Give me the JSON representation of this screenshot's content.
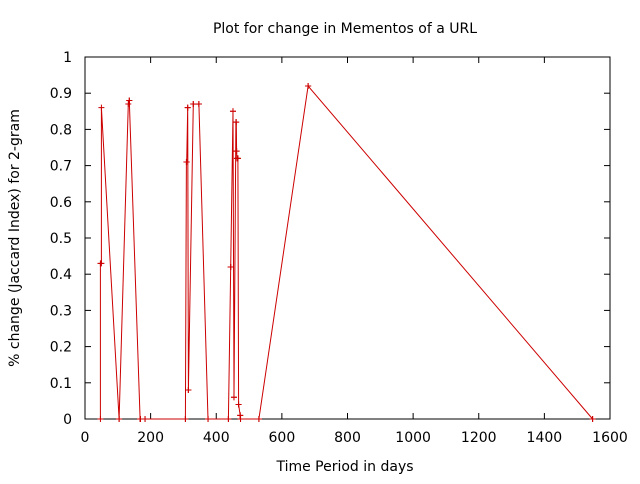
{
  "chart_data": {
    "type": "line",
    "title": "Plot for change in Mementos of a URL",
    "xlabel": "Time Period in days",
    "ylabel": "% change (Jaccard Index) for 2-gram",
    "xlim": [
      0,
      1600
    ],
    "ylim": [
      0,
      1
    ],
    "xticks": [
      "0",
      "200",
      "400",
      "600",
      "800",
      "1000",
      "1200",
      "1400",
      "1600"
    ],
    "yticks": [
      "0",
      "0.1",
      "0.2",
      "0.3",
      "0.4",
      "0.5",
      "0.6",
      "0.7",
      "0.8",
      "0.9",
      "1"
    ],
    "grid": false,
    "legend": "none",
    "series": [
      {
        "color": "#cc0000",
        "x": [
          47,
          47,
          50,
          50,
          104,
          104,
          132,
          135,
          135,
          168,
          168,
          169,
          169,
          183,
          183,
          306,
          306,
          309,
          310,
          313,
          313,
          315,
          315,
          330,
          330,
          347,
          347,
          375,
          375,
          437,
          437,
          444,
          444,
          451,
          451,
          454,
          454,
          460,
          461,
          462,
          462,
          463,
          464,
          466,
          466,
          468,
          468,
          473,
          473,
          474,
          474,
          530,
          530,
          680,
          680,
          1547,
          1547
        ],
        "y": [
          0,
          0.43,
          0.43,
          0.86,
          0,
          0,
          0.87,
          0.88,
          0.88,
          0,
          0,
          0,
          0,
          0,
          0,
          0,
          0,
          0.71,
          0.71,
          0.86,
          0.86,
          0.08,
          0.08,
          0.87,
          0.87,
          0.87,
          0.87,
          0,
          0,
          0,
          0,
          0.42,
          0.42,
          0.85,
          0.85,
          0.06,
          0.06,
          0.82,
          0.82,
          0.74,
          0.74,
          0.72,
          0.72,
          0.72,
          0.72,
          0.04,
          0.04,
          0.01,
          0.01,
          0,
          0,
          0,
          0,
          0.92,
          0.92,
          0,
          0
        ]
      }
    ]
  }
}
